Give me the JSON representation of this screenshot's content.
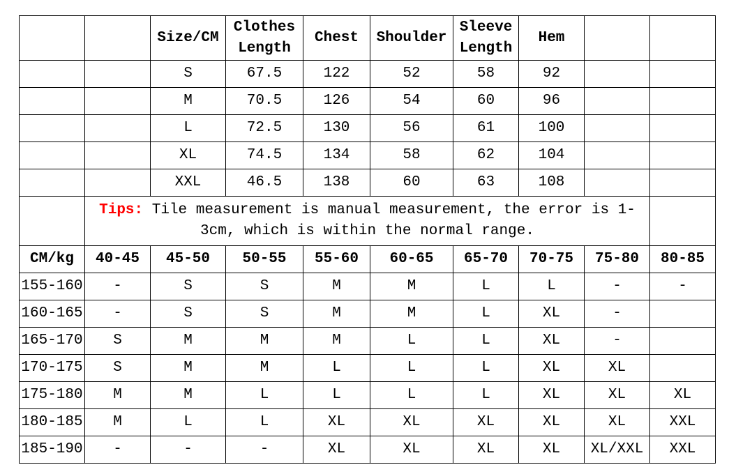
{
  "size_table": {
    "headers": [
      "Size/CM",
      "Clothes Length",
      "Chest",
      "Shoulder",
      "Sleeve Length",
      "Hem"
    ],
    "rows": [
      [
        "S",
        "67.5",
        "122",
        "52",
        "58",
        "92"
      ],
      [
        "M",
        "70.5",
        "126",
        "54",
        "60",
        "96"
      ],
      [
        "L",
        "72.5",
        "130",
        "56",
        "61",
        "100"
      ],
      [
        "XL",
        "74.5",
        "134",
        "58",
        "62",
        "104"
      ],
      [
        "XXL",
        "46.5",
        "138",
        "60",
        "63",
        "108"
      ]
    ]
  },
  "tips": {
    "label": "Tips:",
    "text": " Tile measurement is manual measurement, the error is 1-3cm, which is within the normal range.",
    "label_color": "#ff0000"
  },
  "fit_table": {
    "corner": "CM/kg",
    "weights": [
      "40-45",
      "45-50",
      "50-55",
      "55-60",
      "60-65",
      "65-70",
      "70-75",
      "75-80",
      "80-85"
    ],
    "rows": [
      {
        "height": "155-160",
        "sizes": [
          "-",
          "S",
          "S",
          "M",
          "M",
          "L",
          "L",
          "-",
          "-"
        ]
      },
      {
        "height": "160-165",
        "sizes": [
          "-",
          "S",
          "S",
          "M",
          "M",
          "L",
          "XL",
          "-",
          ""
        ]
      },
      {
        "height": "165-170",
        "sizes": [
          "S",
          "M",
          "M",
          "M",
          "L",
          "L",
          "XL",
          "-",
          ""
        ]
      },
      {
        "height": "170-175",
        "sizes": [
          "S",
          "M",
          "M",
          "L",
          "L",
          "L",
          "XL",
          "XL",
          ""
        ]
      },
      {
        "height": "175-180",
        "sizes": [
          "M",
          "M",
          "L",
          "L",
          "L",
          "L",
          "XL",
          "XL",
          "XL"
        ]
      },
      {
        "height": "180-185",
        "sizes": [
          "M",
          "L",
          "L",
          "XL",
          "XL",
          "XL",
          "XL",
          "XL",
          "XXL"
        ]
      },
      {
        "height": "185-190",
        "sizes": [
          "-",
          "-",
          "-",
          "XL",
          "XL",
          "XL",
          "XL",
          "XL/XXL",
          "XXL"
        ]
      }
    ]
  }
}
